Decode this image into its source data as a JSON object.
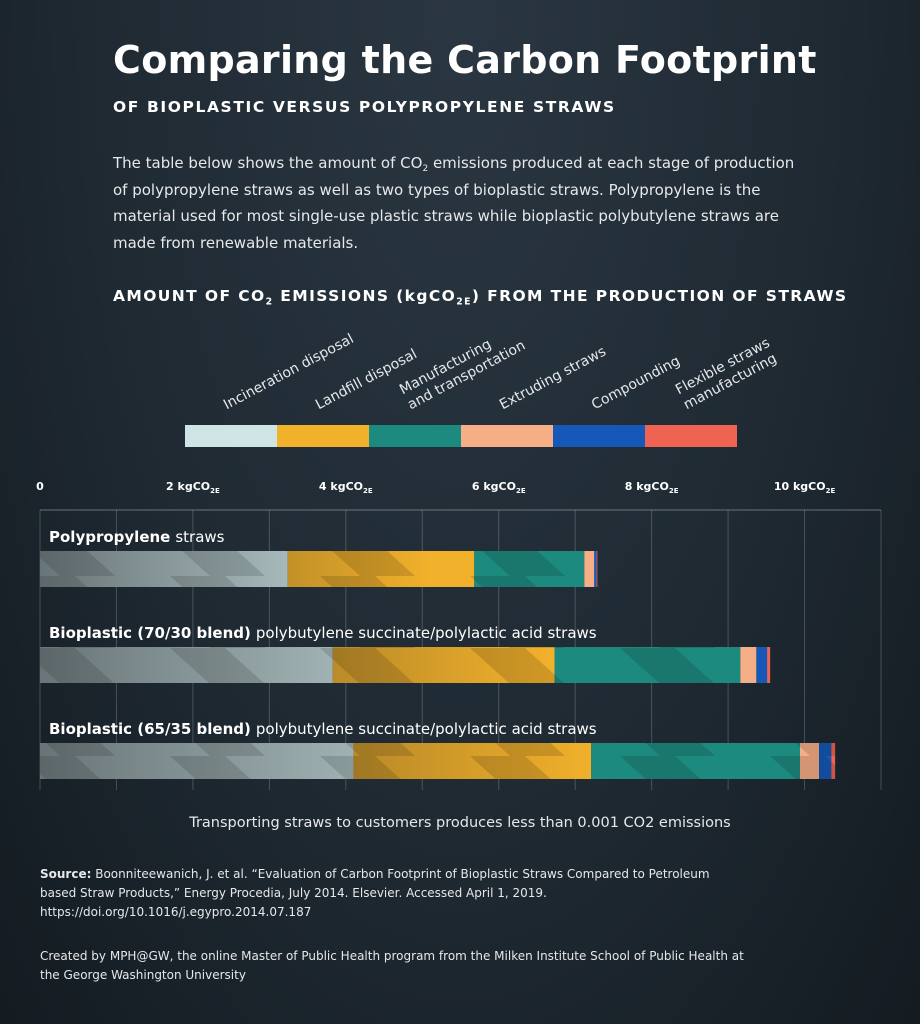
{
  "header": {
    "title": "Comparing the Carbon Footprint",
    "subtitle": "OF BIOPLASTIC VERSUS POLYPROPYLENE STRAWS",
    "description_segments": [
      "The table below shows the amount of CO",
      "2",
      " emissions produced at each stage of production of polypropylene straws as well as two types of bioplastic straws. Polypropylene is the material used for most single-use plastic straws while bioplastic polybutylene straws are made from renewable materials."
    ]
  },
  "chart_data": {
    "type": "stacked-bar-horizontal",
    "title_segments": [
      "AMOUNT OF CO",
      "2",
      " EMISSIONS (kgCO",
      "2E",
      ") FROM THE PRODUCTION OF STRAWS"
    ],
    "categories": [
      {
        "bold": "Polypropylene",
        "text": "straws"
      },
      {
        "bold": "Bioplastic (70/30 blend)",
        "text": "polybutylene succinate/polylactic acid straws"
      },
      {
        "bold": "Bioplastic (65/35 blend)",
        "text": "polybutylene succinate/polylactic acid straws"
      }
    ],
    "series": [
      {
        "name": "Incineration disposal",
        "color": "#cfe5e5",
        "values": [
          3.24,
          3.83,
          4.1
        ]
      },
      {
        "name": "Landfill disposal",
        "color": "#f2b12b",
        "values": [
          2.44,
          2.9,
          3.11
        ]
      },
      {
        "name": "Manufacturing\nand transportation",
        "color": "#1d8a80",
        "values": [
          1.44,
          2.43,
          2.73
        ]
      },
      {
        "name": "Extruding straws",
        "color": "#f6ae87",
        "values": [
          0.13,
          0.21,
          0.25
        ]
      },
      {
        "name": "Compounding",
        "color": "#1558b8",
        "values": [
          0.03,
          0.14,
          0.16
        ]
      },
      {
        "name": "Flexible straws\nmanufacturing",
        "color": "#ee6352",
        "values": [
          0.01,
          0.04,
          0.05
        ]
      }
    ],
    "xlim": [
      0,
      11
    ],
    "xticks": [
      0,
      {
        "value": 2,
        "label": "2 kgCO"
      },
      {
        "value": 4,
        "label": "4 kgCO"
      },
      {
        "value": 6,
        "label": "6 kgCO"
      },
      {
        "value": 8,
        "label": "8 kgCO"
      },
      {
        "value": 10,
        "label": "10 kgCO"
      }
    ],
    "xtick_unit_subscript": "2E",
    "minor_xticks": [
      1,
      3,
      5,
      7,
      9,
      11
    ],
    "grid": true,
    "note": "Transporting straws to customers produces less than 0.001 CO2 emissions"
  },
  "footer": {
    "source_label": "Source:",
    "source": "Boonniteewanich, J. et al. “Evaluation of Carbon Footprint of Bioplastic Straws Compared to Petroleum based Straw Products,” Energy Procedia, July 2014. Elsevier. Accessed April 1, 2019. https://doi.org/10.1016/j.egypro.2014.07.187",
    "credit": "Created by MPH@GW, the online Master of Public Health program from the Milken Institute School of Public Health at the George Washington University"
  }
}
